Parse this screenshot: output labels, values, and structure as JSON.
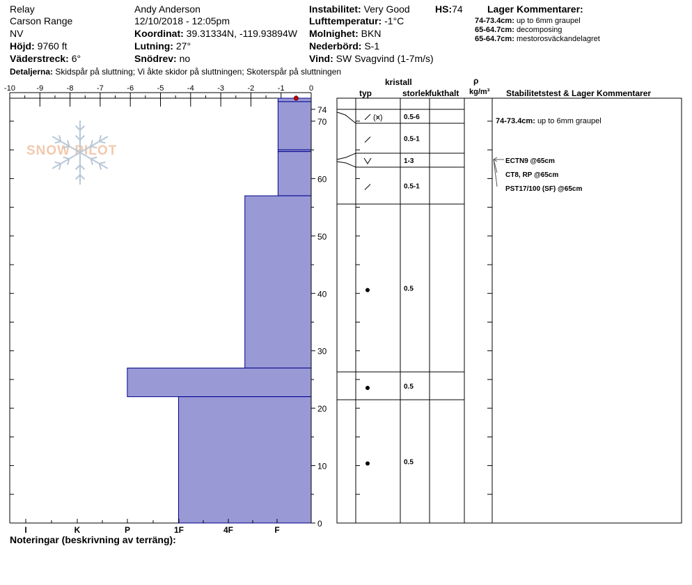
{
  "header": {
    "location": "Relay",
    "range": "Carson Range",
    "state": "NV",
    "elevation_label": "Höjd:",
    "elevation_value": "9760 ft",
    "aspect_label": "Väderstreck:",
    "aspect_value": "6°",
    "observer": "Andy Anderson",
    "datetime": "12/10/2018 - 12:05pm",
    "coord_label": "Koordinat:",
    "coord_value": "39.31334N, -119.93894W",
    "slope_label": "Lutning:",
    "slope_value": "27°",
    "wind_loading_label": "Snödrev:",
    "wind_loading_value": "no",
    "stability_label": "Instabilitet:",
    "stability_value": "Very Good",
    "hs_label": "HS:",
    "hs_value": "74",
    "air_temp_label": "Lufttemperatur:",
    "air_temp_value": "-1°C",
    "sky_label": "Molnighet:",
    "sky_value": "BKN",
    "precip_label": "Nederbörd:",
    "precip_value": "S-1",
    "wind_label": "Vind:",
    "wind_value": "SW  Svagvind (1-7m/s)",
    "details_label": "Detaljerna:",
    "details_value": "Skidspår på sluttning;  Vi åkte skidor på sluttningen;  Skoterspår på sluttningen",
    "layer_comments_title": "Lager Kommentarer:",
    "layer_comments": [
      {
        "range": "74-73.4cm:",
        "text": "up to 6mm graupel"
      },
      {
        "range": "65-64.7cm:",
        "text": "decomposing"
      },
      {
        "range": "65-64.7cm:",
        "text": "mestorosväckandelagret"
      }
    ]
  },
  "logo": {
    "text": "SNOW PILOT"
  },
  "columns": {
    "crystal": "kristall",
    "type": "typ",
    "size": "storlek",
    "moisture": "fukthalt",
    "rho": "ρ",
    "density_unit": "kg/m³",
    "stability_title": "Stabilitetstest & Lager Kommentarer"
  },
  "notes_label": "Noteringar (beskrivning av terräng):",
  "chart_data": {
    "type": "snow-profile",
    "temperature_axis": {
      "ticks": [
        -10,
        -9,
        -8,
        -7,
        -6,
        -5,
        -4,
        -3,
        -2,
        -1,
        0
      ],
      "labels": [
        "-10",
        "-9",
        "-8",
        "-7",
        "-6",
        "-5",
        "-4",
        "-3",
        "-2",
        "-1",
        "0"
      ]
    },
    "height_axis": {
      "range": [
        0,
        74
      ],
      "ticks": [
        0,
        10,
        20,
        30,
        40,
        50,
        60,
        70,
        74
      ],
      "labels": [
        "0",
        "10",
        "20",
        "30",
        "40",
        "50",
        "60",
        "70",
        "74"
      ]
    },
    "hardness_axis": {
      "labels": [
        "I",
        "K",
        "P",
        "1F",
        "4F",
        "F"
      ]
    },
    "surface_temperature_point": {
      "depth": 74,
      "temp": -0.5
    },
    "layers": [
      {
        "top": 74,
        "bottom": 73.4,
        "hardness_temp_extent": -1.1,
        "grain": "precipitation-particles-graupel",
        "size": "0.5-6"
      },
      {
        "top": 73.4,
        "bottom": 65,
        "hardness_temp_extent": -1.1,
        "grain": "decomposing",
        "size": "0.5-1"
      },
      {
        "top": 65,
        "bottom": 64.7,
        "hardness_temp_extent": -1.1,
        "grain": "surface-hoar",
        "size": "1-3"
      },
      {
        "top": 64.7,
        "bottom": 57,
        "hardness_temp_extent": -1.1,
        "grain": "decomposing",
        "size": "0.5-1"
      },
      {
        "top": 57,
        "bottom": 27,
        "hardness_temp_extent": -2.2,
        "grain": "rounded",
        "size": "0.5"
      },
      {
        "top": 27,
        "bottom": 22,
        "hardness_temp_extent": -6.1,
        "grain": "rounded",
        "size": "0.5"
      },
      {
        "top": 22,
        "bottom": 0,
        "hardness_temp_extent": -4.4,
        "grain": "rounded",
        "size": "0.5"
      }
    ],
    "stability_tests": [
      {
        "depth": 65,
        "text": "ECTN9 @65cm"
      },
      {
        "depth": 65,
        "text": "CT8, RP @65cm"
      },
      {
        "depth": 65,
        "text": "PST17/100 (SF) @65cm"
      }
    ],
    "stability_comment": {
      "range": "74-73.4cm:",
      "text": "up to 6mm graupel"
    }
  }
}
